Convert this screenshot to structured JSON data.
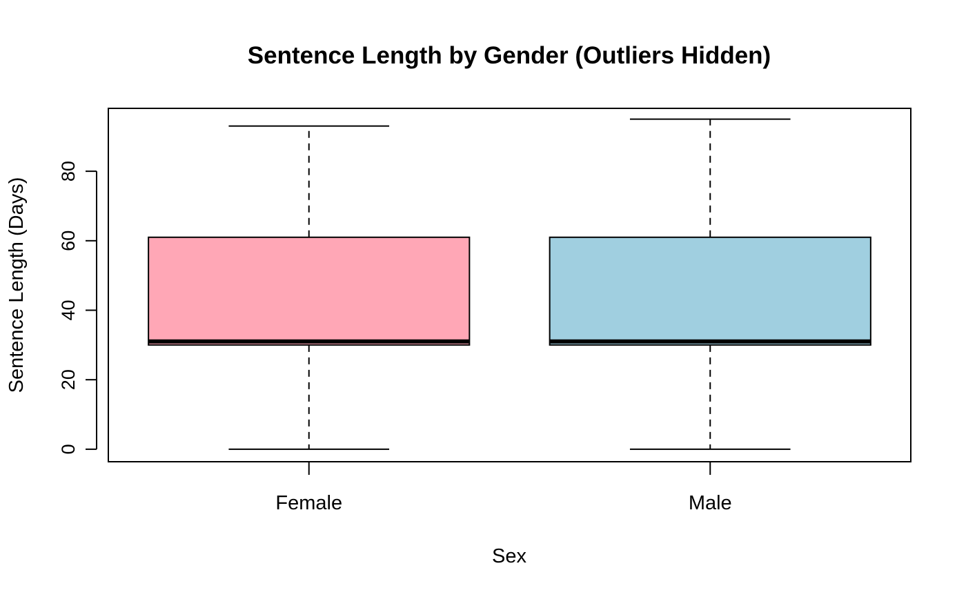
{
  "chart_data": {
    "type": "boxplot",
    "title": "Sentence Length by Gender (Outliers Hidden)",
    "xlabel": "Sex",
    "ylabel": "Sentence Length (Days)",
    "ylim": [
      -3.6,
      98.1
    ],
    "yticks": [
      "0",
      "20",
      "40",
      "60",
      "80"
    ],
    "grid": false,
    "outliers_shown": false,
    "categories": [
      "Female",
      "Male"
    ],
    "boxes": [
      {
        "category": "Female",
        "whisker_low": 0,
        "q1": 30,
        "median": 31,
        "q3": 61,
        "whisker_high": 93,
        "color": "#FFA7B6"
      },
      {
        "category": "Male",
        "whisker_low": 0,
        "q1": 30,
        "median": 31,
        "q3": 61,
        "whisker_high": 95,
        "color": "#A0CFE0"
      }
    ]
  }
}
